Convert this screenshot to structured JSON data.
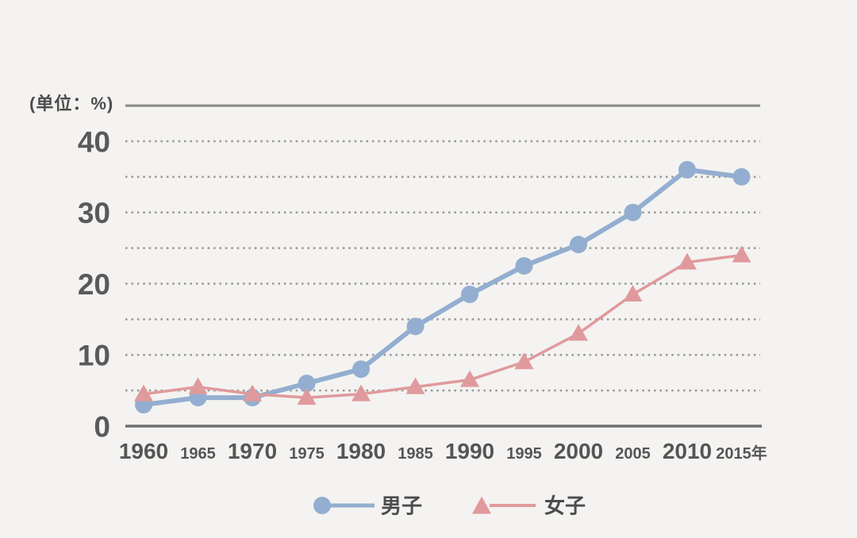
{
  "unit_label": "(单位：%)",
  "colors": {
    "background": "#f4f3f1",
    "male": "#93aed0",
    "female": "#e09a9d",
    "grid": "#9a9a9a",
    "frame_top": "#898989",
    "axis": "#6e6e6e",
    "tick_text": "#5a5a5a",
    "label_text": "#4c4c4c"
  },
  "chart_data": {
    "type": "line",
    "title": "",
    "unit": "(单位：%)",
    "x": [
      1960,
      1965,
      1970,
      1975,
      1980,
      1985,
      1990,
      1995,
      2000,
      2005,
      2010,
      2015
    ],
    "x_tick_labels": [
      "1960",
      "1965",
      "1970",
      "1975",
      "1980",
      "1985",
      "1990",
      "1995",
      "2000",
      "2005",
      "2010",
      "2015年"
    ],
    "series": [
      {
        "name": "男子",
        "marker": "circle",
        "color": "#93aed0",
        "values": [
          3,
          4,
          4,
          6,
          8,
          14,
          18.5,
          22.5,
          25.5,
          30,
          36,
          35
        ]
      },
      {
        "name": "女子",
        "marker": "triangle",
        "color": "#e09a9d",
        "values": [
          4.5,
          5.5,
          4.5,
          4,
          4.5,
          5.5,
          6.5,
          9,
          13,
          18.5,
          23,
          24
        ]
      }
    ],
    "ylim": [
      0,
      45
    ],
    "y_ticks": [
      40,
      30,
      20,
      10,
      0
    ],
    "grid_values": [
      5,
      10,
      15,
      20,
      25,
      30,
      35,
      40
    ],
    "grid_style": "dotted",
    "legend_position": "bottom"
  },
  "legend": {
    "items": [
      {
        "label": "男子",
        "marker": "circle",
        "color": "#93aed0"
      },
      {
        "label": "女子",
        "marker": "triangle",
        "color": "#e09a9d"
      }
    ]
  }
}
